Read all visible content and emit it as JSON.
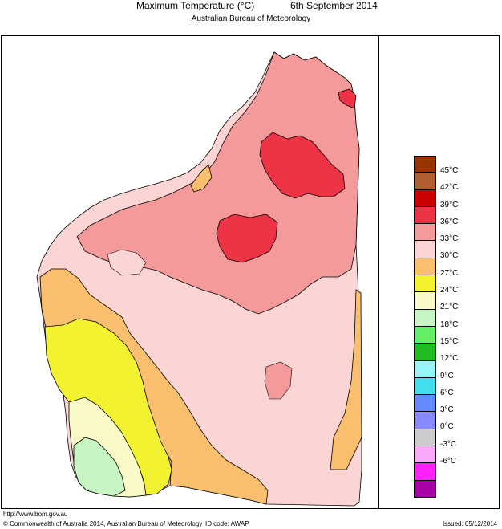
{
  "header": {
    "title": "Maximum Temperature (°C)",
    "date": "6th September 2014",
    "subtitle": "Australian Bureau of Meteorology"
  },
  "legend": {
    "items": [
      {
        "label": "45°C",
        "color": "#993300"
      },
      {
        "label": "42°C",
        "color": "#b06030"
      },
      {
        "label": "39°C",
        "color": "#cc0000"
      },
      {
        "label": "36°C",
        "color": "#ee3344"
      },
      {
        "label": "33°C",
        "color": "#f59a9a"
      },
      {
        "label": "30°C",
        "color": "#fbd4d4"
      },
      {
        "label": "27°C",
        "color": "#f9be6e"
      },
      {
        "label": "24°C",
        "color": "#f2f230"
      },
      {
        "label": "21°C",
        "color": "#fafac8"
      },
      {
        "label": "18°C",
        "color": "#c8f5c4"
      },
      {
        "label": "15°C",
        "color": "#66ee66"
      },
      {
        "label": "12°C",
        "color": "#22bb22"
      },
      {
        "label": "9°C",
        "color": "#99f5f5"
      },
      {
        "label": "6°C",
        "color": "#44ddee"
      },
      {
        "label": "3°C",
        "color": "#6688ff"
      },
      {
        "label": "0°C",
        "color": "#8888ff"
      },
      {
        "label": "-3°C",
        "color": "#cccccc"
      },
      {
        "label": "-6°C",
        "color": "#f8aaf8"
      },
      {
        "label": "",
        "color": "#ff22ff"
      },
      {
        "label": "",
        "color": "#aa00aa"
      }
    ]
  },
  "footer": {
    "url": "http://www.bom.gov.au",
    "copyright": "© Commonwealth of Australia 2014, Australian Bureau of Meteorology",
    "id_code": "ID code: AWAP",
    "issued": "Issued: 05/12/2014"
  }
}
